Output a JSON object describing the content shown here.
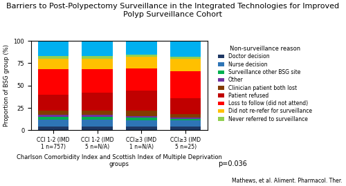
{
  "chart_data": {
    "type": "bar",
    "stacked": true,
    "title": "Barriers to Post-Polypectomy Surveillance in the Integrated Technologies for Improved Polyp Surveillance Cohort",
    "x_label": "Charlson Comorbidity Index and Scottish Index of Multiple Deprivation\ngroups",
    "y_label": "Proportion of BSG group (%)",
    "categories": [
      "CCI 1-2 (IMD\n1 n=757)",
      "CCI 1-2 (IMD\n5 n=N/A)",
      "CCI≥3 (IMD\n1 n=N/A)",
      "CCI≥3 (IMD\n5 n=25)"
    ],
    "series": [
      {
        "name": "Doctor decision",
        "color": "#1f3864",
        "values": [
          4,
          4,
          4,
          4
        ]
      },
      {
        "name": "Nurse decision",
        "color": "#2e75b6",
        "values": [
          8,
          8,
          7,
          7
        ]
      },
      {
        "name": "Surveillance other BSG site",
        "color": "#00b050",
        "values": [
          3,
          3,
          3,
          2
        ]
      },
      {
        "name": "Other",
        "color": "#7030a0",
        "values": [
          2,
          2,
          2,
          1
        ]
      },
      {
        "name": "Clinician patient both lost",
        "color": "#833c00",
        "values": [
          5,
          5,
          6,
          4
        ]
      },
      {
        "name": "Patient refused",
        "color": "#c00000",
        "values": [
          18,
          20,
          22,
          18
        ]
      },
      {
        "name": "Loss to follow (did not attend)",
        "color": "#ff0000",
        "values": [
          28,
          26,
          25,
          30
        ]
      },
      {
        "name": "Did not re-refer for surveillance",
        "color": "#ffc000",
        "values": [
          12,
          12,
          13,
          14
        ]
      },
      {
        "name": "Never referred to surveillance",
        "color": "#92d050",
        "values": [
          3,
          3,
          3,
          2
        ]
      },
      {
        "color": "#00b0f0",
        "values": [
          17,
          17,
          15,
          18
        ]
      }
    ],
    "ylim": [
      0,
      100
    ],
    "yticks": [
      0,
      25,
      50,
      75,
      100
    ],
    "legend": "right",
    "legend_title": "Non-surveillance reason",
    "annotations": [
      "p=0.036",
      "Mathews, et al. Aliment. Pharmacol. Ther."
    ]
  }
}
